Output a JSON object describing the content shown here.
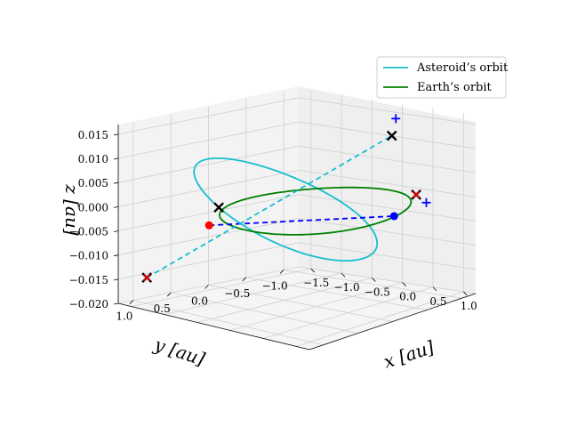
{
  "chart_data": {
    "type": "line3d",
    "title": "",
    "xlabel": "x [au]",
    "ylabel": "y [au]",
    "zlabel": "z [au]",
    "x_ticks": [
      "−1.5",
      "−1.0",
      "−0.5",
      "0.0",
      "0.5",
      "1.0"
    ],
    "y_ticks": [
      "1.0",
      "0.5",
      "0.0",
      "−0.5",
      "−1.0"
    ],
    "z_ticks": [
      "0.015",
      "0.010",
      "0.005",
      "0.000",
      "−0.005",
      "−0.010",
      "−0.015",
      "−0.020"
    ],
    "xlim": [
      -1.7,
      1.2
    ],
    "ylim": [
      -1.2,
      1.2
    ],
    "zlim": [
      -0.02,
      0.017
    ],
    "grid": true,
    "legend": {
      "placement": "top-right",
      "entries": [
        {
          "label": "Asteroid’s orbit",
          "color": "#17becf"
        },
        {
          "label": "Earth’s orbit",
          "color": "#008000"
        }
      ]
    },
    "series": [
      {
        "name": "Asteroid’s orbit",
        "color": "#17becf",
        "style": "solid",
        "ellipse": {
          "a": 1.5,
          "b": 0.92,
          "center": [
            -0.3,
            0.15
          ],
          "rotation_deg": 30,
          "z_amp": 0.016,
          "z_phase_deg": 45
        }
      },
      {
        "name": "Earth’s orbit",
        "color": "#008000",
        "style": "solid",
        "ellipse": {
          "a": 1.0,
          "b": 1.0,
          "center": [
            0.0,
            0.0
          ],
          "rotation_deg": 0,
          "z_amp": 0.0,
          "z_phase_deg": 0
        }
      }
    ],
    "points": [
      {
        "name": "asteroid-position",
        "marker": "dot",
        "color": "#ff0000",
        "xyz": [
          -1.05,
          0.55,
          -0.004
        ]
      },
      {
        "name": "earth-position",
        "marker": "dot",
        "color": "#0000ff",
        "xyz": [
          0.95,
          -0.25,
          0.0
        ]
      },
      {
        "name": "cross-near-origin",
        "marker": "x",
        "color": "#000000",
        "xyz": [
          -0.45,
          0.95,
          0.003
        ]
      },
      {
        "name": "cross-far-left",
        "marker": "x",
        "color": "#000000",
        "xyz": [
          -1.55,
          0.95,
          -0.015
        ]
      },
      {
        "name": "cross-top-right",
        "marker": "x",
        "color": "#000000",
        "xyz": [
          0.35,
          -0.75,
          0.013
        ]
      },
      {
        "name": "cross-right",
        "marker": "x",
        "color": "#000000",
        "xyz": [
          0.8,
          -0.7,
          0.002
        ]
      },
      {
        "name": "plus-upper",
        "marker": "plus",
        "color": "#0000ff",
        "xyz": [
          0.3,
          -0.85,
          0.016
        ]
      },
      {
        "name": "plus-lower",
        "marker": "plus",
        "color": "#0000ff",
        "xyz": [
          0.85,
          -0.8,
          0.0
        ]
      },
      {
        "name": "red-x-left",
        "marker": "x-small",
        "color": "#ff0000",
        "xyz": [
          -1.55,
          0.95,
          -0.015
        ]
      },
      {
        "name": "red-x-right",
        "marker": "x-small",
        "color": "#ff0000",
        "xyz": [
          0.8,
          -0.7,
          0.002
        ]
      }
    ],
    "segments": [
      {
        "name": "blue-dashed-link",
        "color": "#0000ff",
        "style": "dashed",
        "from": [
          -1.05,
          0.55,
          -0.004
        ],
        "to": [
          0.95,
          -0.25,
          0.0
        ]
      },
      {
        "name": "cyan-dashed-link",
        "color": "#17becf",
        "style": "dashed",
        "from": [
          -1.55,
          0.95,
          -0.015
        ],
        "to": [
          0.35,
          -0.75,
          0.013
        ]
      }
    ]
  }
}
